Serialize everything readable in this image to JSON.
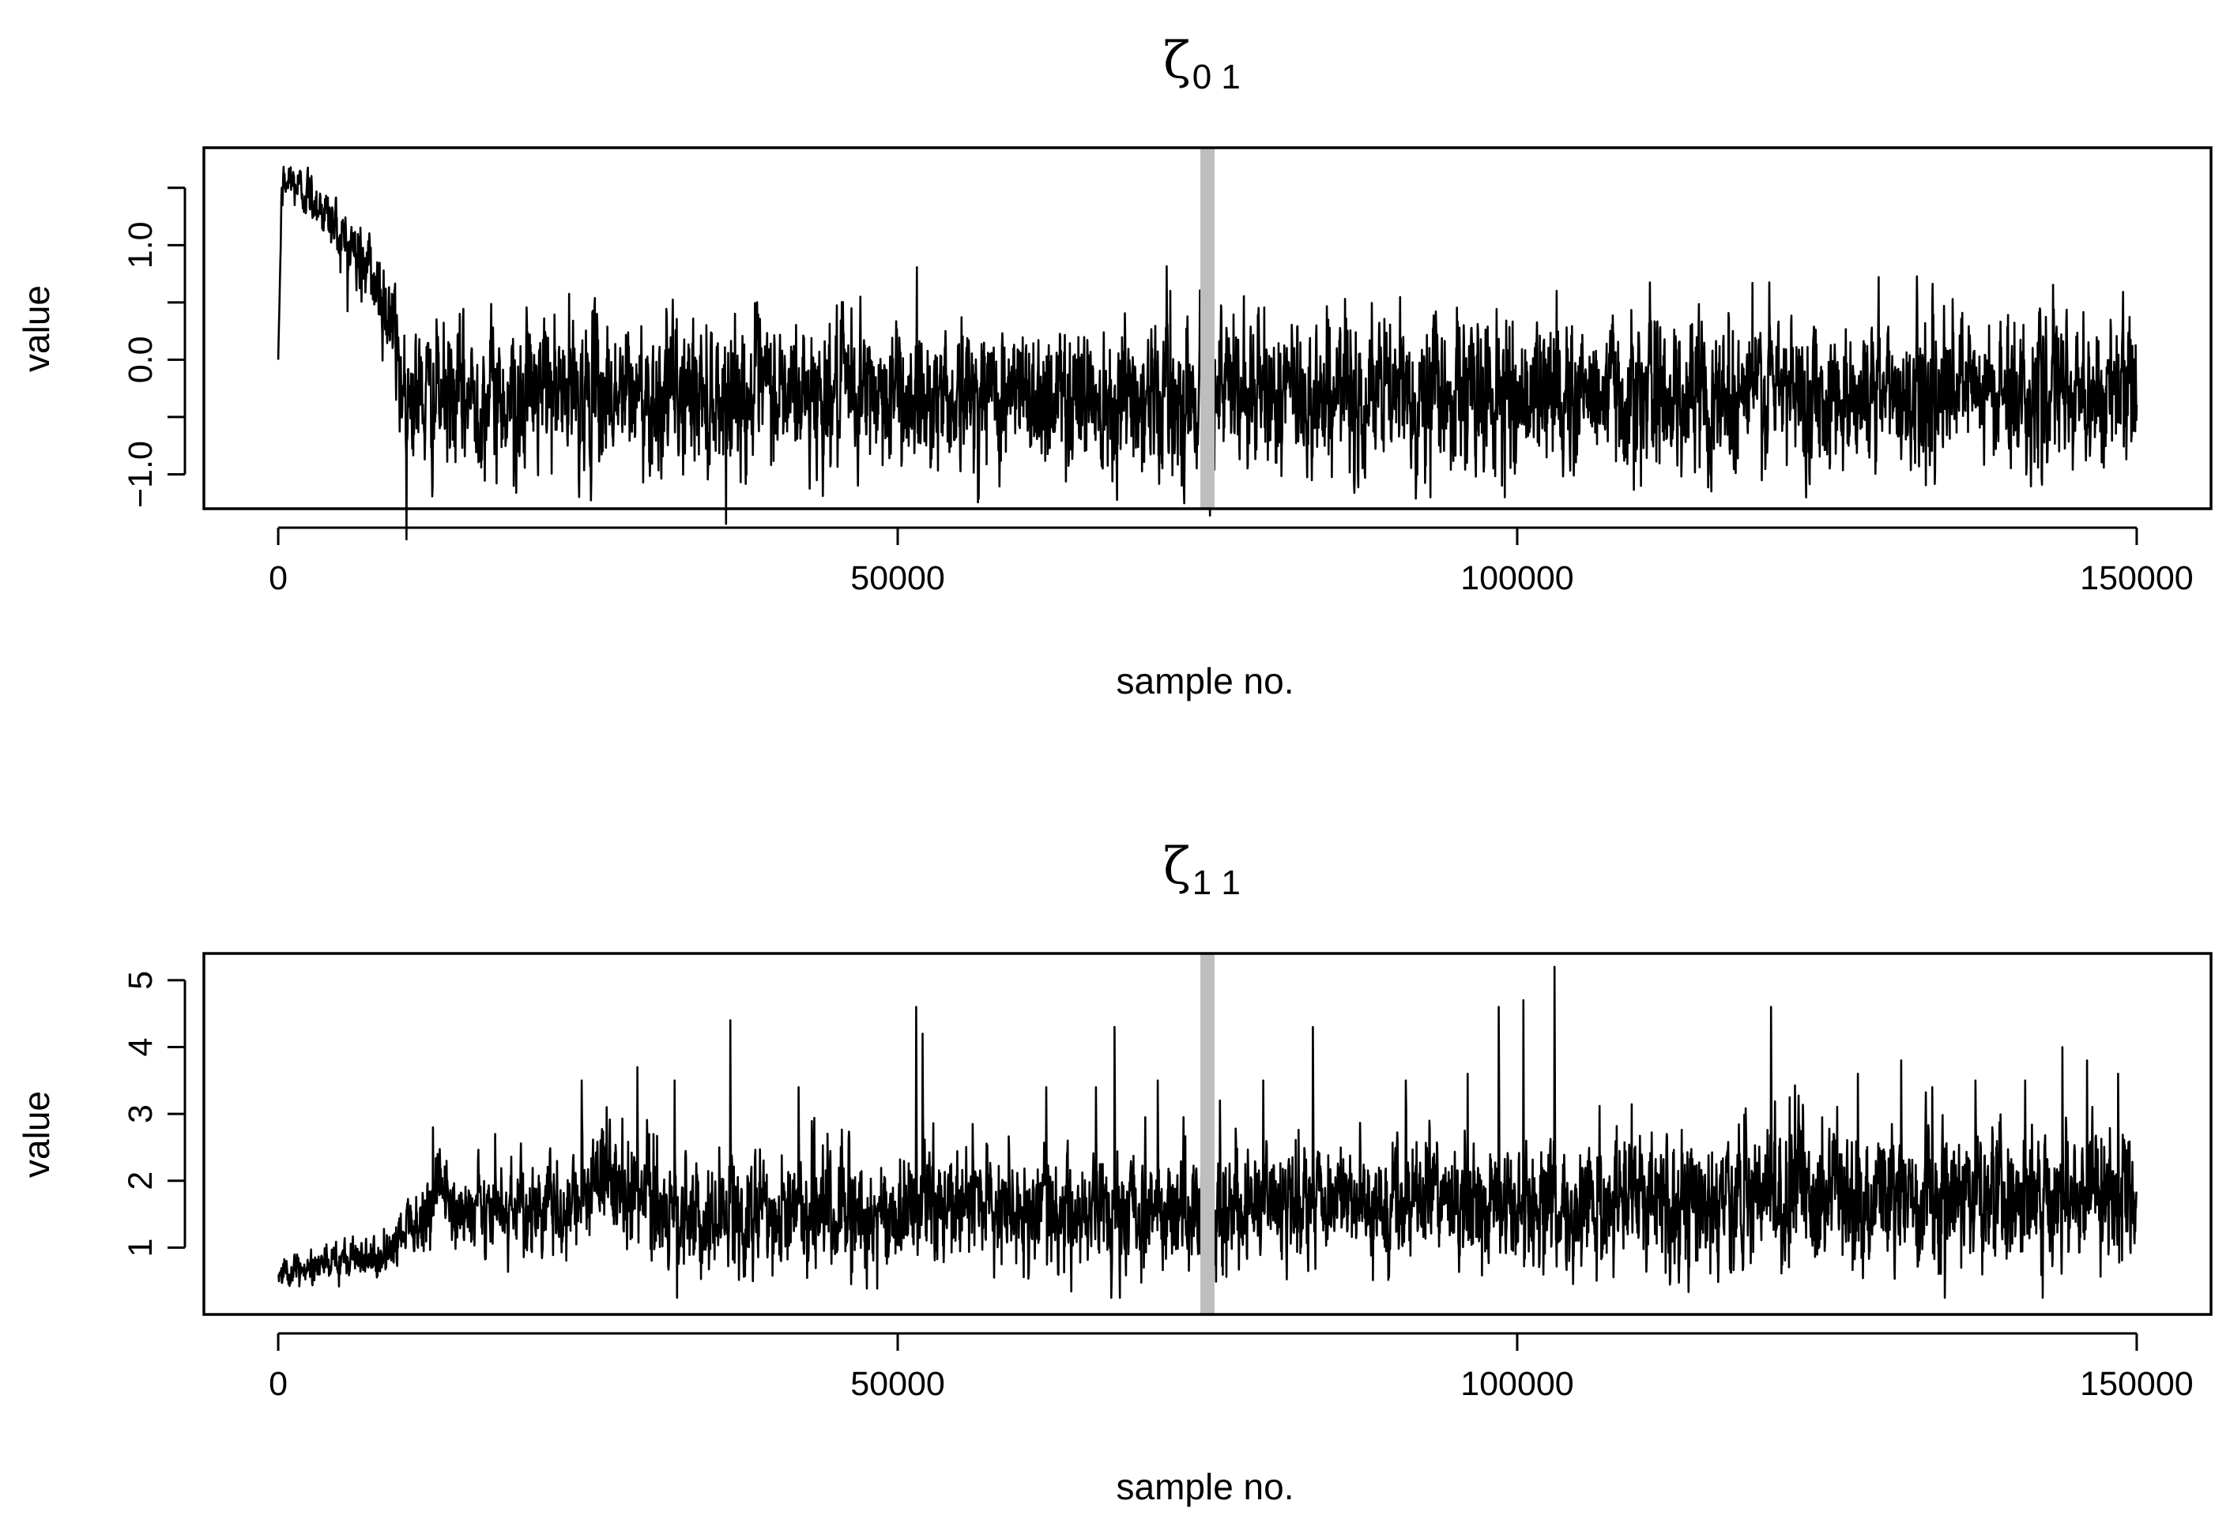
{
  "chart_data": [
    {
      "type": "line",
      "title": "ζ",
      "title_subscript": "0 1",
      "xlabel": "sample no.",
      "ylabel": "value",
      "xlim": [
        -6000,
        156000
      ],
      "ylim": [
        -1.3,
        1.85
      ],
      "x_ticks": [
        0,
        50000,
        100000,
        150000
      ],
      "x_tick_labels": [
        "0",
        "50000",
        "100000",
        "150000"
      ],
      "y_ticks": [
        -1.0,
        -0.5,
        0.0,
        0.5,
        1.0,
        1.5
      ],
      "y_tick_labels": [
        "−1.0",
        "",
        "0.0",
        "",
        "1.0",
        ""
      ],
      "marker_x": 75000,
      "line_color": "#000000",
      "marker_color": "#bebebe",
      "grid": false,
      "series": [
        {
          "n_samples": 150000,
          "x": [
            0,
            300,
            1000,
            3000,
            5000,
            7000,
            8000,
            9000,
            10000,
            12000,
            20000,
            40000,
            60000,
            75000,
            100000,
            120000,
            150000
          ],
          "mean": [
            0.0,
            1.5,
            1.55,
            1.4,
            1.1,
            0.8,
            0.65,
            0.4,
            -0.2,
            -0.35,
            -0.3,
            -0.3,
            -0.3,
            -0.3,
            -0.3,
            -0.28,
            -0.3
          ],
          "spread": [
            0.0,
            0.1,
            0.1,
            0.12,
            0.15,
            0.2,
            0.2,
            0.25,
            0.3,
            0.3,
            0.32,
            0.32,
            0.32,
            0.33,
            0.34,
            0.33,
            0.32
          ],
          "extremes": [
            [
              1000,
              1.68
            ],
            [
              19000,
              -1.1
            ],
            [
              72000,
              0.6
            ],
            [
              93000,
              -1.2
            ],
            [
              99000,
              -1.2
            ],
            [
              119000,
              0.67
            ],
            [
              110000,
              -1.1
            ],
            [
              47000,
              0.55
            ]
          ]
        }
      ]
    },
    {
      "type": "line",
      "title": "ζ",
      "title_subscript": "1 1",
      "xlabel": "sample no.",
      "ylabel": "value",
      "xlim": [
        -6000,
        156000
      ],
      "ylim": [
        0.0,
        5.4
      ],
      "x_ticks": [
        0,
        50000,
        100000,
        150000
      ],
      "x_tick_labels": [
        "0",
        "50000",
        "100000",
        "150000"
      ],
      "y_ticks": [
        1,
        2,
        3,
        4,
        5
      ],
      "y_tick_labels": [
        "1",
        "2",
        "3",
        "4",
        "5"
      ],
      "marker_x": 75000,
      "line_color": "#000000",
      "marker_color": "#bebebe",
      "grid": false,
      "series": [
        {
          "n_samples": 150000,
          "x": [
            0,
            3000,
            8000,
            11000,
            13000,
            16000,
            20000,
            24000,
            26000,
            30000,
            40000,
            60000,
            75000,
            100000,
            120000,
            150000
          ],
          "mean": [
            0.6,
            0.7,
            0.85,
            1.3,
            1.8,
            1.55,
            1.5,
            1.6,
            2.1,
            1.6,
            1.55,
            1.6,
            1.6,
            1.7,
            1.75,
            1.8
          ],
          "spread": [
            0.1,
            0.12,
            0.15,
            0.25,
            0.35,
            0.3,
            0.35,
            0.35,
            0.45,
            0.45,
            0.45,
            0.45,
            0.45,
            0.5,
            0.55,
            0.5
          ],
          "spikes": [
            [
              12500,
              2.8
            ],
            [
              17500,
              2.7
            ],
            [
              24500,
              3.5
            ],
            [
              26500,
              3.1
            ],
            [
              29000,
              3.7
            ],
            [
              32000,
              3.5
            ],
            [
              36500,
              4.4
            ],
            [
              42000,
              3.4
            ],
            [
              51500,
              4.6
            ],
            [
              52000,
              4.2
            ],
            [
              62000,
              3.4
            ],
            [
              66000,
              3.4
            ],
            [
              67500,
              4.3
            ],
            [
              71000,
              3.5
            ],
            [
              76000,
              3.2
            ],
            [
              79500,
              3.5
            ],
            [
              83500,
              4.3
            ],
            [
              91000,
              3.5
            ],
            [
              96000,
              3.6
            ],
            [
              98500,
              4.6
            ],
            [
              100500,
              4.7
            ],
            [
              103000,
              5.2
            ],
            [
              120500,
              4.6
            ],
            [
              127500,
              3.6
            ],
            [
              131000,
              3.8
            ],
            [
              133500,
              3.4
            ],
            [
              137000,
              3.5
            ],
            [
              141000,
              3.5
            ],
            [
              144000,
              4.0
            ],
            [
              146000,
              3.8
            ],
            [
              148500,
              3.6
            ]
          ]
        }
      ]
    }
  ]
}
